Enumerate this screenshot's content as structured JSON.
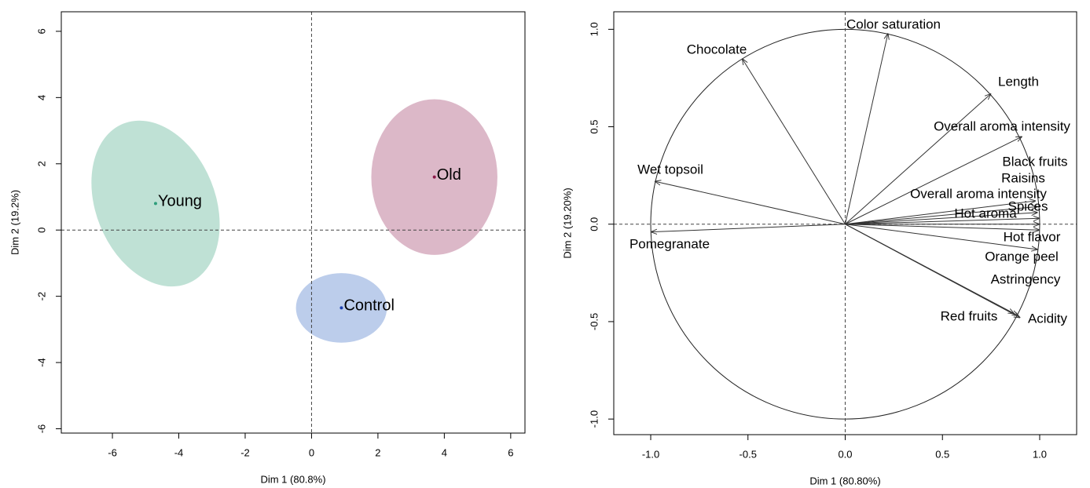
{
  "chart_data": [
    {
      "type": "scatter",
      "xlabel": "Dim 1 (80.8%)",
      "ylabel": "Dim 2 (19.2%)",
      "xlim": [
        -7.54,
        6.43
      ],
      "ylim": [
        -6.13,
        6.59
      ],
      "xticks": [
        -6,
        -4,
        -2,
        0,
        2,
        4,
        6
      ],
      "yticks": [
        -6,
        -4,
        -2,
        0,
        2,
        4,
        6
      ],
      "series": [
        {
          "name": "Young",
          "color": "#2e9e7b",
          "ellipse_color": "#bfe1d5",
          "x": -4.7,
          "y": 0.8,
          "ellipse": {
            "rx": 1.8,
            "ry": 2.6,
            "angle": -22
          }
        },
        {
          "name": "Old",
          "color": "#8b1a4a",
          "ellipse_color": "#dcb8c8",
          "x": 3.7,
          "y": 1.6,
          "ellipse": {
            "rx": 1.9,
            "ry": 2.35,
            "angle": 0
          }
        },
        {
          "name": "Control",
          "color": "#1c3fae",
          "ellipse_color": "#bccdeb",
          "x": 0.9,
          "y": -2.35,
          "ellipse": {
            "rx": 1.37,
            "ry": 1.05,
            "angle": 0
          }
        }
      ]
    },
    {
      "type": "vector",
      "xlabel": "Dim 1 (80.80%)",
      "ylabel": "Dim 2 (19.20%)",
      "xlim": [
        -1.19,
        1.19
      ],
      "ylim": [
        -1.08,
        1.09
      ],
      "xticks": [
        {
          "value": -1,
          "label": "-1.0"
        },
        {
          "value": -0.5,
          "label": "-0.5"
        },
        {
          "value": 0,
          "label": "0.0"
        },
        {
          "value": 0.5,
          "label": "0.5"
        },
        {
          "value": 1,
          "label": "1.0"
        }
      ],
      "yticks": [
        {
          "value": -1,
          "label": "-1.0"
        },
        {
          "value": -0.5,
          "label": "-0.5"
        },
        {
          "value": 0,
          "label": "0.0"
        },
        {
          "value": 0.5,
          "label": "0.5"
        },
        {
          "value": 1,
          "label": "1.0"
        }
      ],
      "circle_radius": 1,
      "variables": [
        {
          "name": "Color saturation",
          "x": 0.22,
          "y": 0.98
        },
        {
          "name": "Chocolate",
          "x": -0.53,
          "y": 0.85
        },
        {
          "name": "Length",
          "x": 0.75,
          "y": 0.67
        },
        {
          "name": "Overall aroma intensity",
          "x": 0.91,
          "y": 0.45
        },
        {
          "name": "Wet topsoil",
          "x": -0.98,
          "y": 0.22
        },
        {
          "name": "Black fruits",
          "x": 0.98,
          "y": 0.12
        },
        {
          "name": "Raisins",
          "x": 0.99,
          "y": 0.09
        },
        {
          "name": "Overall aroma intensity",
          "x": 0.99,
          "y": 0.06
        },
        {
          "name": "Hot aroma",
          "x": 1.0,
          "y": 0.03
        },
        {
          "name": "Spices",
          "x": 1.0,
          "y": 0.0
        },
        {
          "name": "Hot flavor",
          "x": 1.0,
          "y": -0.03
        },
        {
          "name": "Orange peel",
          "x": 0.99,
          "y": -0.13
        },
        {
          "name": "Pomegranate",
          "x": -1.0,
          "y": -0.04
        },
        {
          "name": "Astringency",
          "x": 0.87,
          "y": -0.46
        },
        {
          "name": "Red fruits",
          "x": 0.89,
          "y": -0.47
        },
        {
          "name": "Acidity",
          "x": 0.9,
          "y": -0.48
        }
      ]
    }
  ]
}
